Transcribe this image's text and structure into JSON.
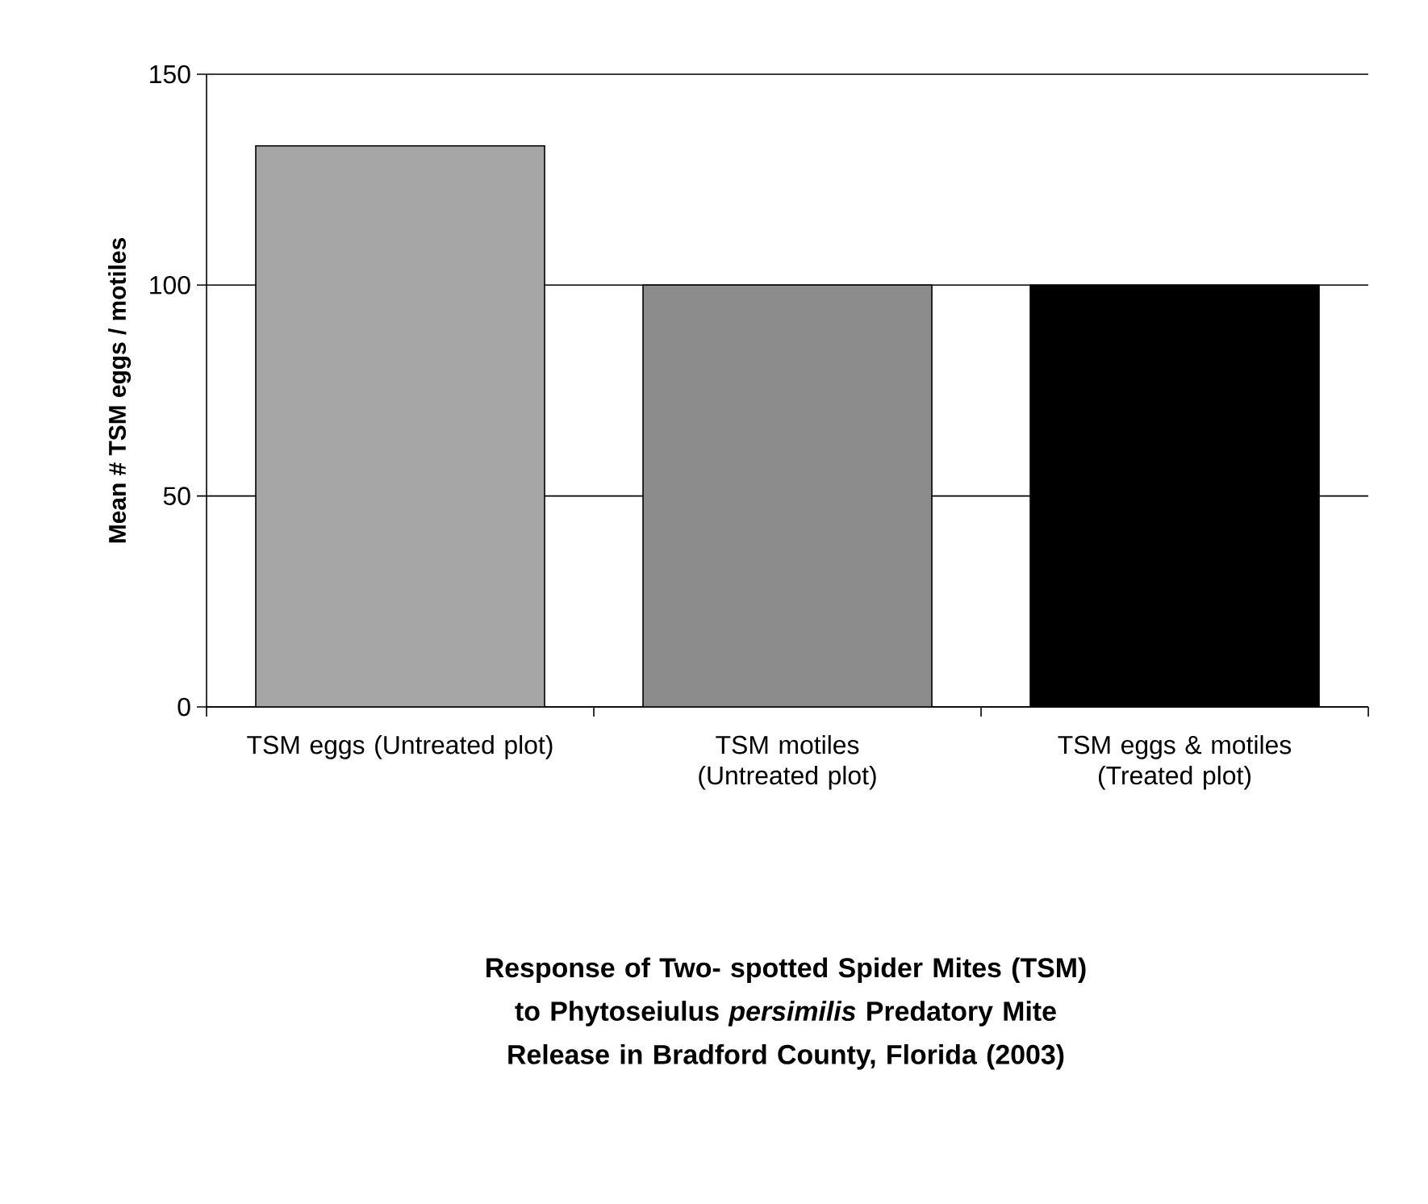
{
  "chart_data": {
    "type": "bar",
    "title": "Response of Two- spotted Spider Mites (TSM) to Phytoseiulus *persimilis* Predatory Mite Release in Bradford County, Florida (2003)",
    "ylabel": "Mean # TSM eggs / motiles",
    "categories": [
      "TSM eggs (Untreated plot)",
      "TSM motiles (Untreated plot)",
      "TSM eggs & motiles (Treated plot)"
    ],
    "values": [
      133,
      100,
      100
    ],
    "colors": [
      "#a6a6a6",
      "#8c8c8c",
      "#000000"
    ],
    "ylim": [
      0,
      150
    ],
    "yticks": [
      0,
      50,
      100,
      150
    ],
    "grid": "y"
  }
}
